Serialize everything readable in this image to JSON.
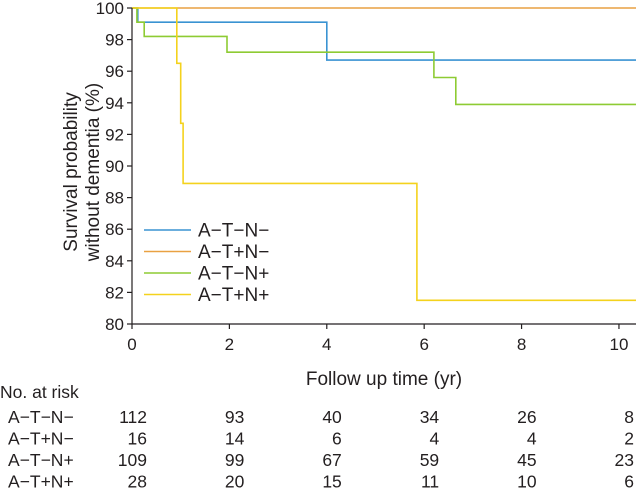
{
  "chart_data": {
    "type": "line",
    "subtype": "kaplan-meier-step",
    "xlabel": "Follow up time (yr)",
    "ylabel_lines": [
      "Survival probability",
      "without dementia (%)"
    ],
    "xlim": [
      0,
      10.35
    ],
    "ylim": [
      80,
      100
    ],
    "xticks": [
      0,
      2,
      4,
      6,
      8,
      10
    ],
    "yticks": [
      80,
      82,
      84,
      86,
      88,
      90,
      92,
      94,
      96,
      98,
      100
    ],
    "grid": false,
    "legend_position": "lower-left",
    "series": [
      {
        "name": "A−T−N−",
        "color": "#3a93d2",
        "steps": [
          [
            0,
            100
          ],
          [
            0.12,
            99.1
          ],
          [
            4.0,
            96.7
          ],
          [
            10.35,
            96.7
          ]
        ]
      },
      {
        "name": "A−T+N−",
        "color": "#e9a142",
        "steps": [
          [
            0,
            100
          ],
          [
            10.35,
            100
          ]
        ]
      },
      {
        "name": "A−T−N+",
        "color": "#8ecb33",
        "steps": [
          [
            0,
            100
          ],
          [
            0.1,
            99.1
          ],
          [
            0.25,
            98.2
          ],
          [
            1.95,
            97.2
          ],
          [
            6.2,
            95.6
          ],
          [
            6.65,
            93.9
          ],
          [
            10.35,
            93.9
          ]
        ]
      },
      {
        "name": "A−T+N+",
        "color": "#f4d21d",
        "steps": [
          [
            0,
            100
          ],
          [
            0.92,
            96.5
          ],
          [
            1.0,
            92.7
          ],
          [
            1.05,
            88.9
          ],
          [
            5.85,
            81.5
          ],
          [
            10.35,
            81.5
          ]
        ]
      }
    ]
  },
  "risk_table": {
    "title": "No. at risk",
    "time_points": [
      0,
      2,
      4,
      6,
      8,
      10
    ],
    "rows": [
      {
        "label": "A−T−N−",
        "values": [
          "112",
          "93",
          "40",
          "34",
          "26",
          "8"
        ]
      },
      {
        "label": "A−T+N−",
        "values": [
          "16",
          "14",
          "6",
          "4",
          "4",
          "2"
        ]
      },
      {
        "label": "A−T−N+",
        "values": [
          "109",
          "99",
          "67",
          "59",
          "45",
          "23"
        ]
      },
      {
        "label": "A−T+N+",
        "values": [
          "28",
          "20",
          "15",
          "11",
          "10",
          "6"
        ]
      }
    ]
  }
}
